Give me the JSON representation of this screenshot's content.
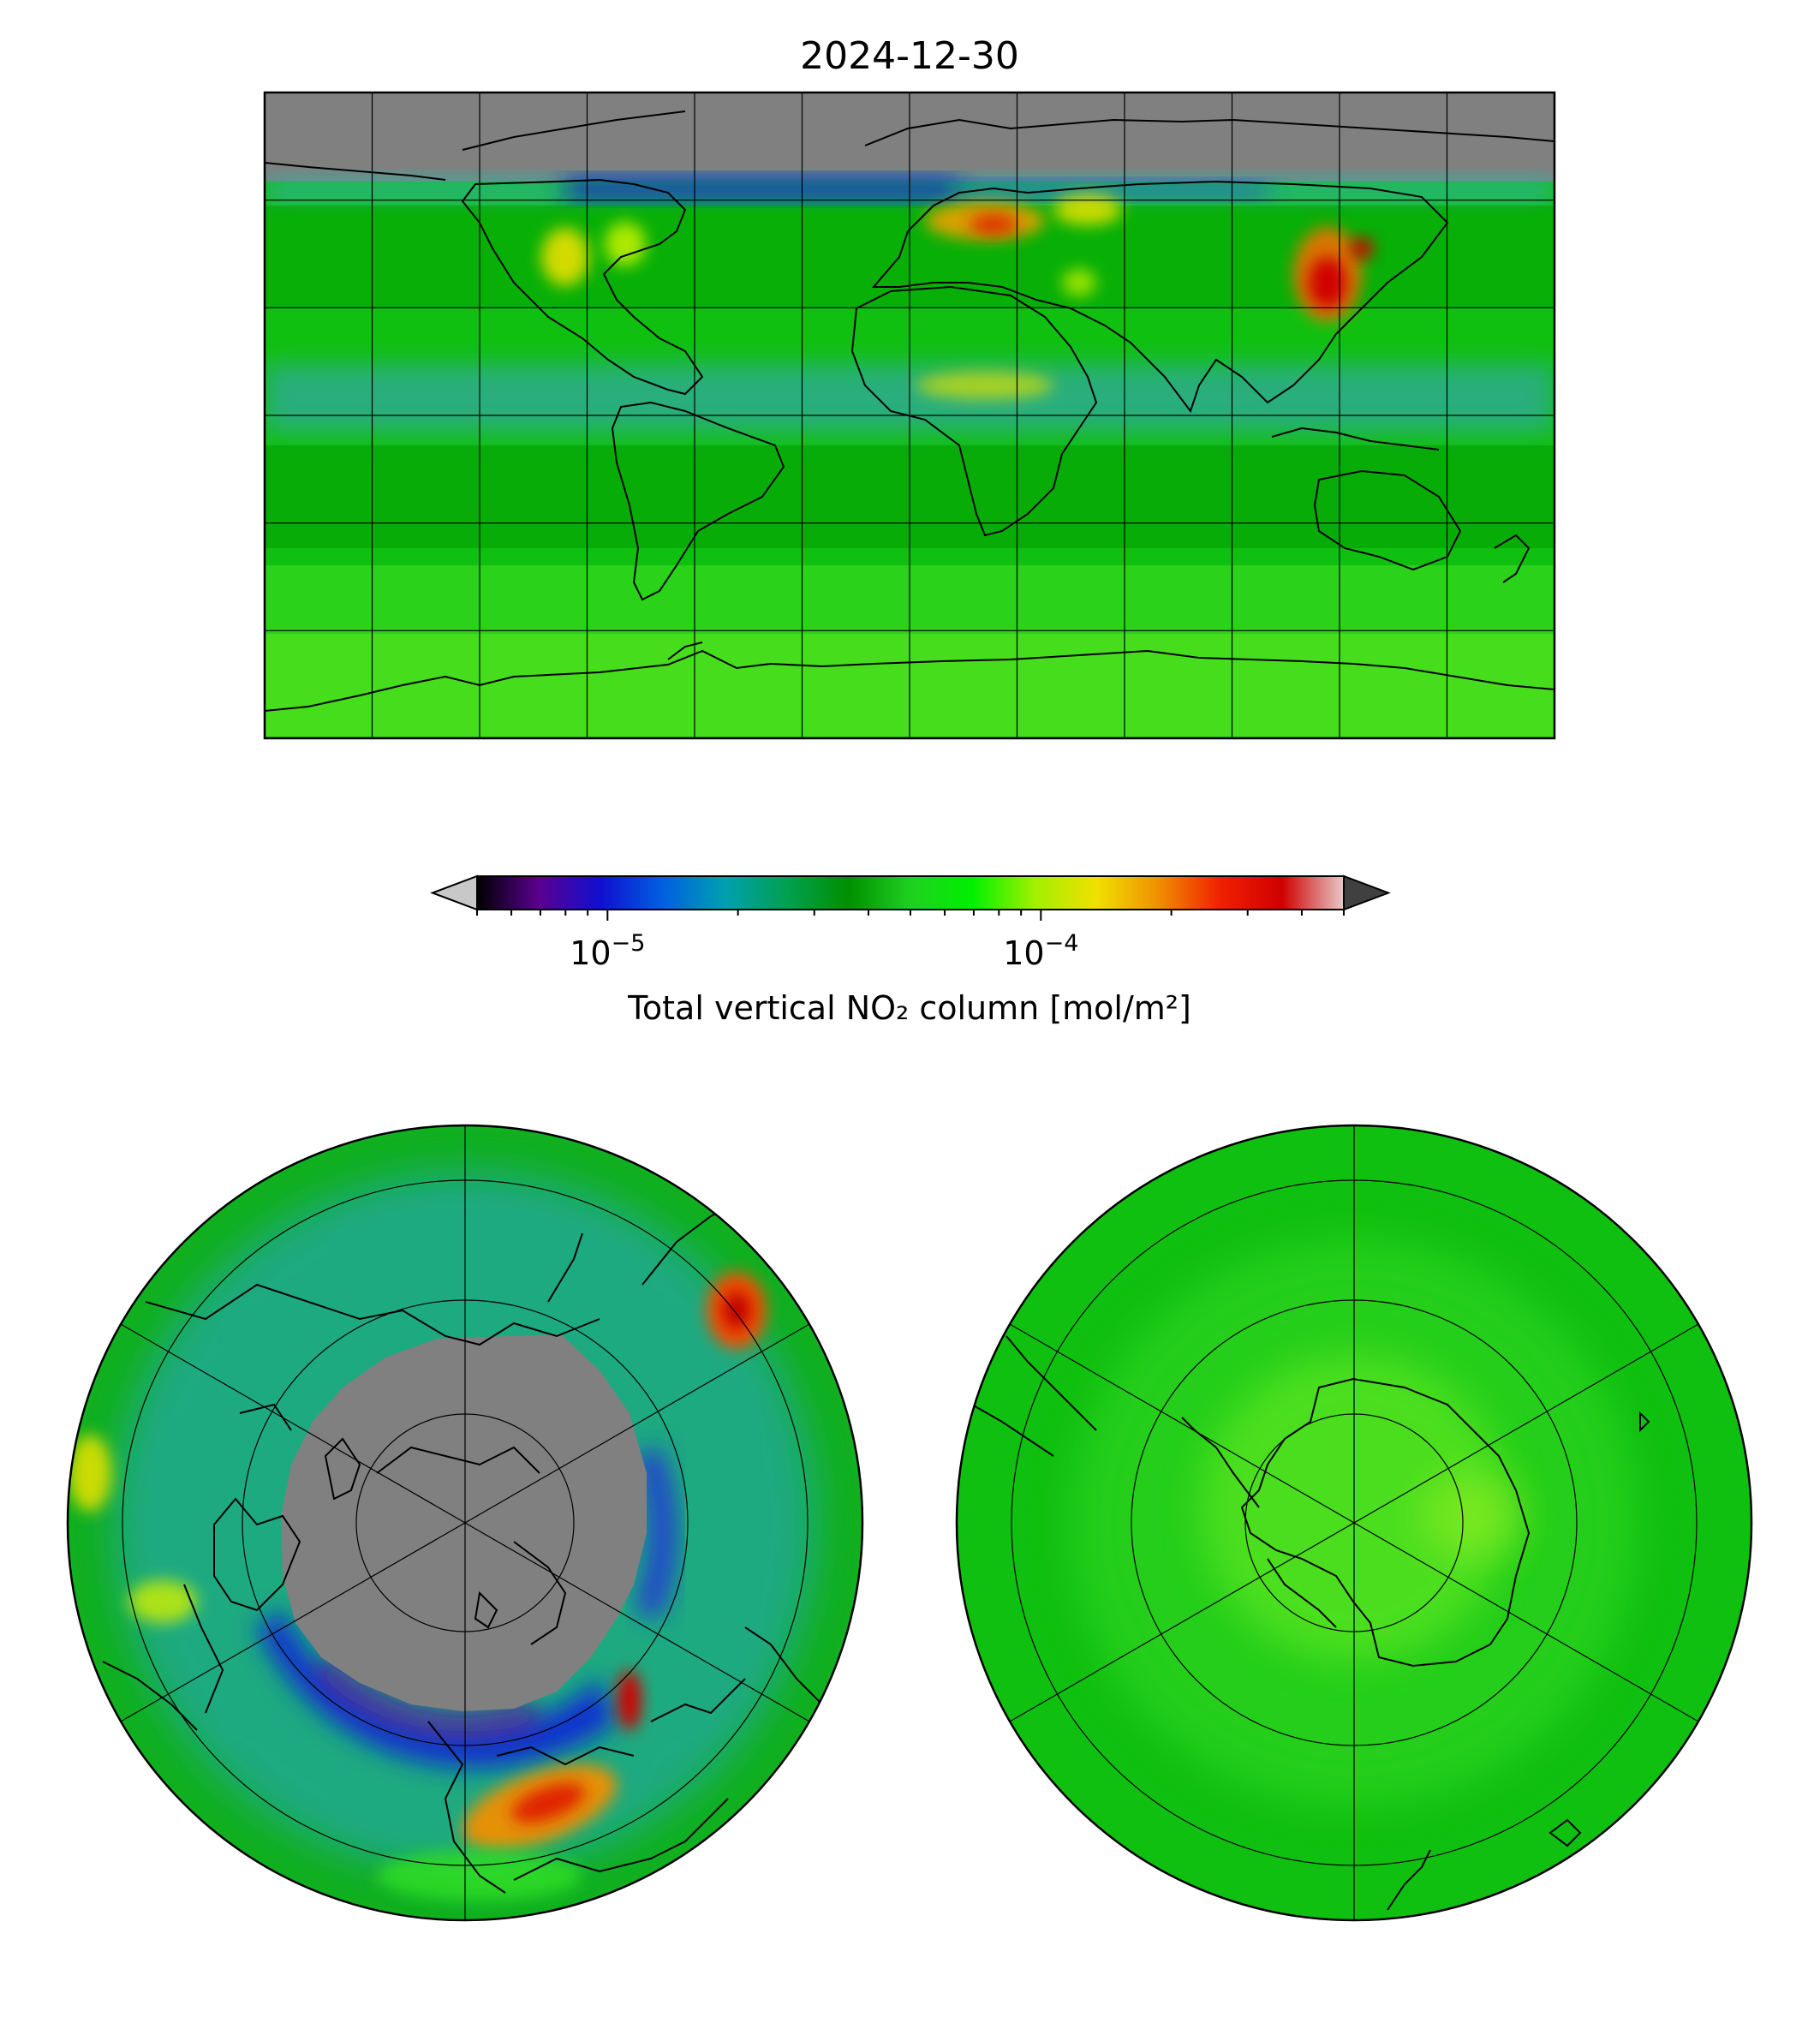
{
  "figure": {
    "title": "2024-12-30"
  },
  "colorbar": {
    "label": "Total vertical NO₂ column [mol/m²]",
    "scale": "log",
    "range": [
      5e-06,
      0.0005
    ],
    "extend": "both",
    "under_color": "#c8c8c8",
    "over_color": "#404040",
    "major_ticks": [
      {
        "value": 1e-05,
        "base": "10",
        "exp": "−5"
      },
      {
        "value": 0.0001,
        "base": "10",
        "exp": "−4"
      }
    ],
    "minor_ticks": [
      5e-06,
      6e-06,
      7e-06,
      8e-06,
      9e-06,
      2e-05,
      3e-05,
      4e-05,
      5e-05,
      6e-05,
      7e-05,
      8e-05,
      9e-05,
      0.0002,
      0.0003,
      0.0004,
      0.0005
    ],
    "colors": [
      "#000000",
      "#5a0090",
      "#1010d0",
      "#0060e0",
      "#00a0b0",
      "#00a050",
      "#009000",
      "#20d020",
      "#00f000",
      "#a0f000",
      "#f0e000",
      "#f09000",
      "#f02000",
      "#d00000",
      "#e8c8c8"
    ]
  },
  "maps": {
    "global": {
      "projection": "PlateCarree",
      "nodata_color": "#808080"
    },
    "north_polar": {
      "projection": "NorthPolarStereo",
      "nodata_color": "#808080"
    },
    "south_polar": {
      "projection": "SouthPolarStereo"
    }
  }
}
